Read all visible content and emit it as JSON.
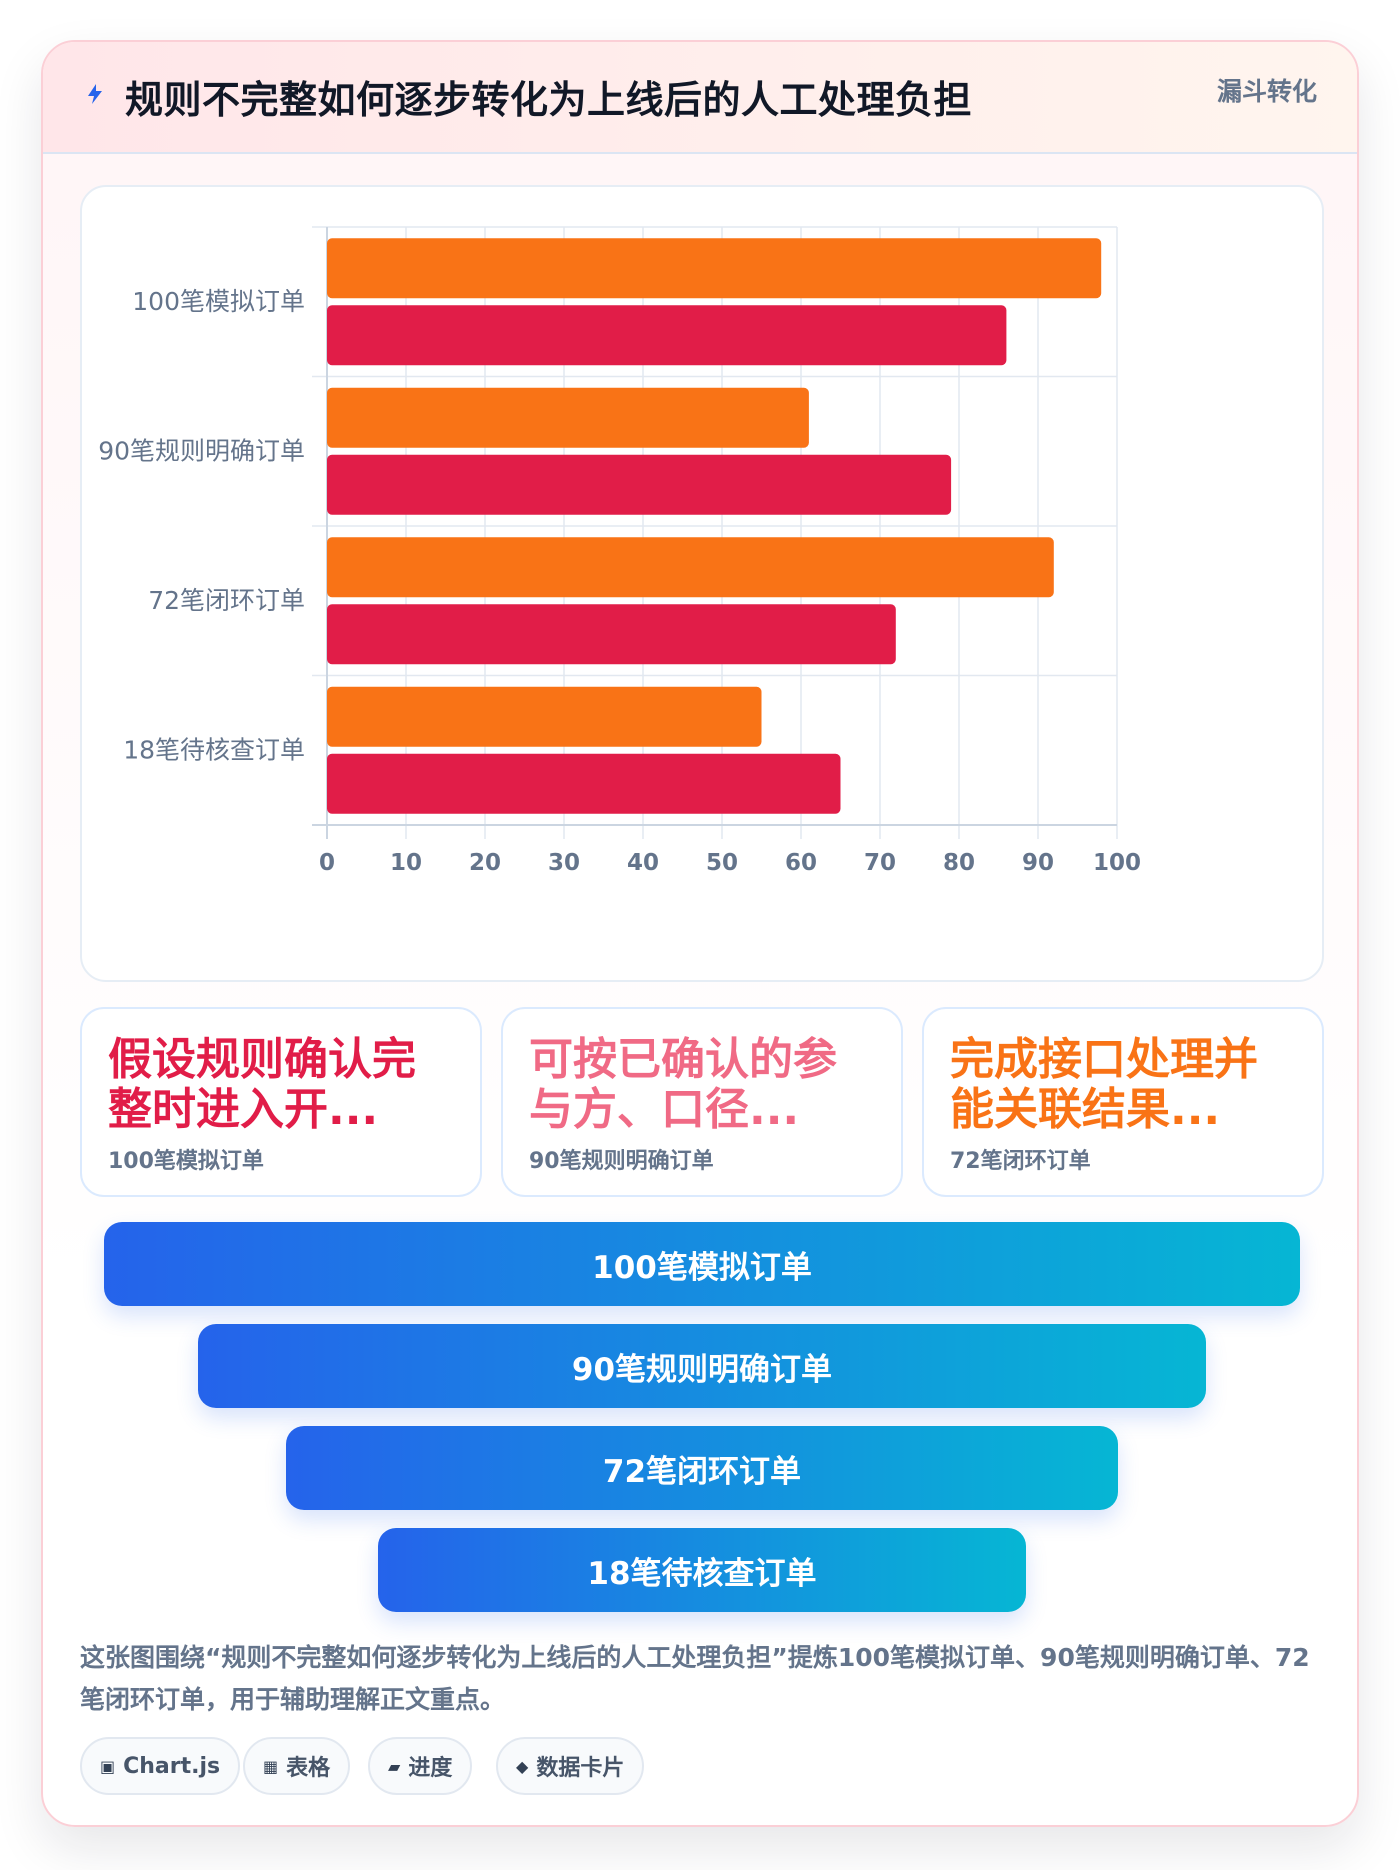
{
  "header": {
    "title": "规则不完整如何逐步转化为上线后的人工处理负担",
    "tag": "漏斗转化",
    "icon": "lightning-icon"
  },
  "chart_data": {
    "type": "bar",
    "orientation": "horizontal",
    "categories": [
      "100笔模拟订单",
      "90笔规则明确订单",
      "72笔闭环订单",
      "18笔待核查订单"
    ],
    "series": [
      {
        "values": [
          98,
          61,
          92,
          55
        ],
        "color": "#f97316"
      },
      {
        "values": [
          86,
          79,
          72,
          65
        ],
        "color": "#e11d48"
      }
    ],
    "xlim": [
      0,
      100
    ],
    "xticks": [
      0,
      10,
      20,
      30,
      40,
      50,
      60,
      70,
      80,
      90,
      100
    ],
    "grid": true,
    "legend": "none"
  },
  "cards": [
    {
      "title": "假设规则确认完整时进入开...",
      "subtitle": "100笔模拟订单",
      "color": "#e11d48"
    },
    {
      "title": "可按已确认的参与方、口径...",
      "subtitle": "90笔规则明确订单",
      "color": "#f06a85"
    },
    {
      "title": "完成接口处理并能关联结果...",
      "subtitle": "72笔闭环订单",
      "color": "#f97316"
    }
  ],
  "funnel": [
    {
      "label": "100笔模拟订单"
    },
    {
      "label": "90笔规则明确订单"
    },
    {
      "label": "72笔闭环订单"
    },
    {
      "label": "18笔待核查订单"
    }
  ],
  "caption": "这张图围绕“规则不完整如何逐步转化为上线后的人工处理负担”提炼100笔模拟订单、90笔规则明确订单、72笔闭环订单，用于辅助理解正文重点。",
  "chips": [
    {
      "icon": "▣",
      "label": "Chart.js"
    },
    {
      "icon": "▦",
      "label": "表格"
    },
    {
      "icon": "▰",
      "label": "进度"
    },
    {
      "icon": "◆",
      "label": "数据卡片"
    }
  ]
}
